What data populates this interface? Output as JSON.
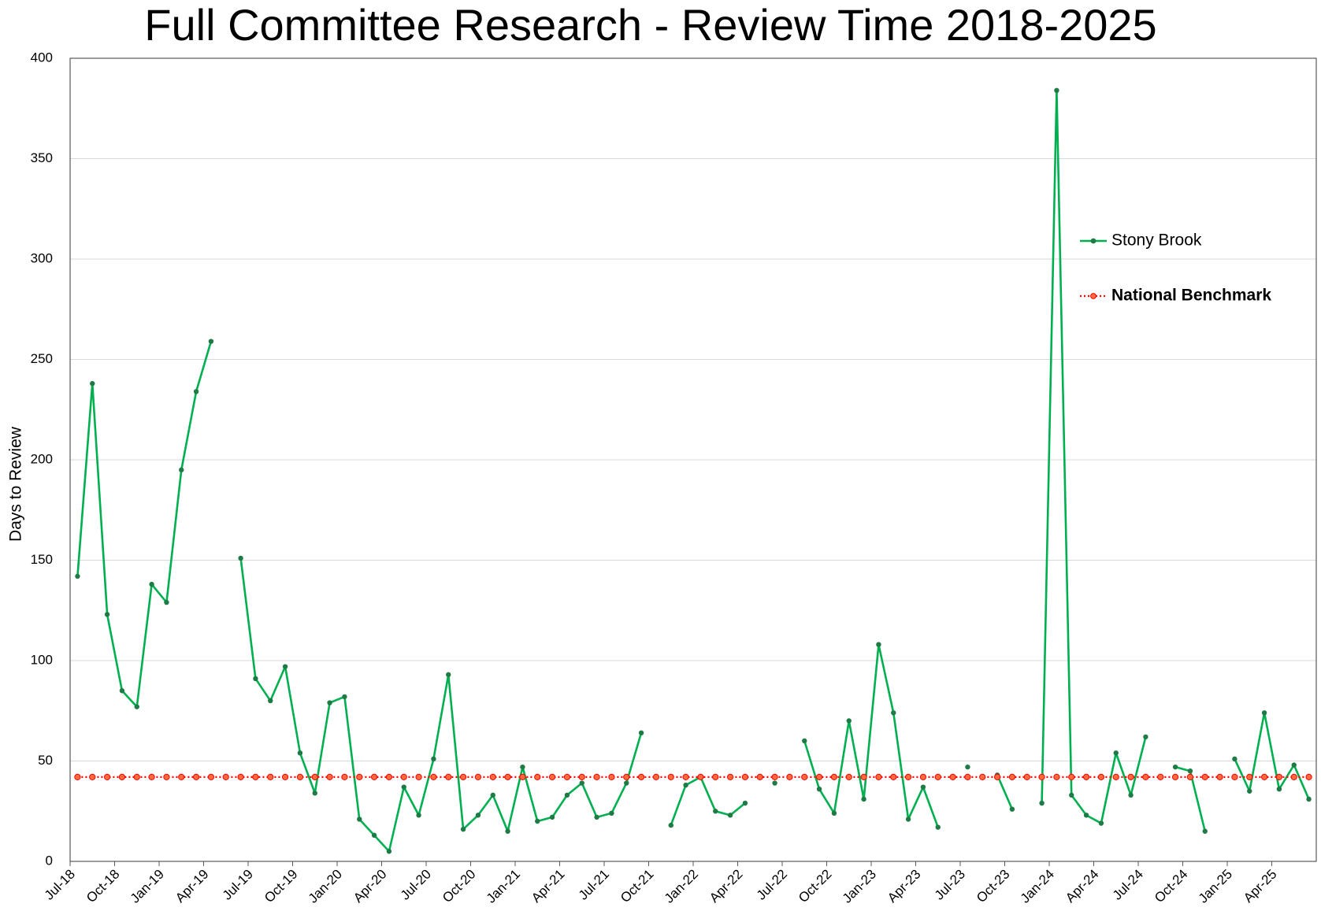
{
  "chart_data": {
    "type": "line",
    "title": "Full Committee Research - Review Time 2018-2025",
    "y_label": "Days to Review",
    "categories": [
      "Jul-18",
      null,
      null,
      "Oct-18",
      null,
      null,
      "Jan-19",
      null,
      null,
      "Apr-19",
      null,
      null,
      "Jul-19",
      null,
      null,
      "Oct-19",
      null,
      null,
      "Jan-20",
      null,
      null,
      "Apr-20",
      null,
      null,
      "Jul-20",
      null,
      null,
      "Oct-20",
      null,
      null,
      "Jan-21",
      null,
      null,
      "Apr-21",
      null,
      null,
      "Jul-21",
      null,
      null,
      "Oct-21",
      null,
      null,
      "Jan-22",
      null,
      null,
      "Apr-22",
      null,
      null,
      "Jul-22",
      null,
      null,
      "Oct-22",
      null,
      null,
      "Jan-23",
      null,
      null,
      "Apr-23",
      null,
      null,
      "Jul-23",
      null,
      null,
      "Oct-23",
      null,
      null,
      "Jan-24",
      null,
      null,
      "Apr-24",
      null,
      null,
      "Jul-24",
      null,
      null,
      "Oct-24",
      null,
      null,
      "Jan-25",
      null,
      null,
      "Apr-25",
      null,
      null
    ],
    "series": [
      {
        "name": "Stony Brook",
        "color": "#00b050",
        "marker_color": "#1e7b45",
        "line_style": "solid",
        "font_weight": "normal",
        "values": [
          142,
          238,
          123,
          85,
          77,
          138,
          129,
          195,
          234,
          259,
          null,
          151,
          91,
          80,
          97,
          54,
          34,
          79,
          82,
          21,
          13,
          5,
          37,
          23,
          51,
          93,
          16,
          23,
          33,
          15,
          47,
          20,
          22,
          33,
          39,
          22,
          24,
          39,
          64,
          null,
          18,
          38,
          42,
          25,
          23,
          29,
          null,
          39,
          null,
          60,
          36,
          24,
          70,
          31,
          108,
          74,
          21,
          37,
          17,
          null,
          47,
          null,
          43,
          26,
          null,
          29,
          384,
          33,
          23,
          19,
          54,
          33,
          62,
          null,
          47,
          45,
          15,
          null,
          51,
          35,
          74,
          36,
          48,
          31
        ]
      },
      {
        "name": "National Benchmark",
        "color": "#ff0000",
        "marker_color": "#ff6a3d",
        "line_style": "dotted",
        "font_weight": "bold",
        "values": [
          42,
          42,
          42,
          42,
          42,
          42,
          42,
          42,
          42,
          42,
          42,
          42,
          42,
          42,
          42,
          42,
          42,
          42,
          42,
          42,
          42,
          42,
          42,
          42,
          42,
          42,
          42,
          42,
          42,
          42,
          42,
          42,
          42,
          42,
          42,
          42,
          42,
          42,
          42,
          42,
          42,
          42,
          42,
          42,
          42,
          42,
          42,
          42,
          42,
          42,
          42,
          42,
          42,
          42,
          42,
          42,
          42,
          42,
          42,
          42,
          42,
          42,
          42,
          42,
          42,
          42,
          42,
          42,
          42,
          42,
          42,
          42,
          42,
          42,
          42,
          42,
          42,
          42,
          42,
          42,
          42,
          42,
          42,
          42
        ]
      }
    ],
    "ylim": [
      0,
      400
    ],
    "yticks": [
      0,
      50,
      100,
      150,
      200,
      250,
      300,
      350,
      400
    ],
    "grid": true,
    "legend": "right"
  }
}
